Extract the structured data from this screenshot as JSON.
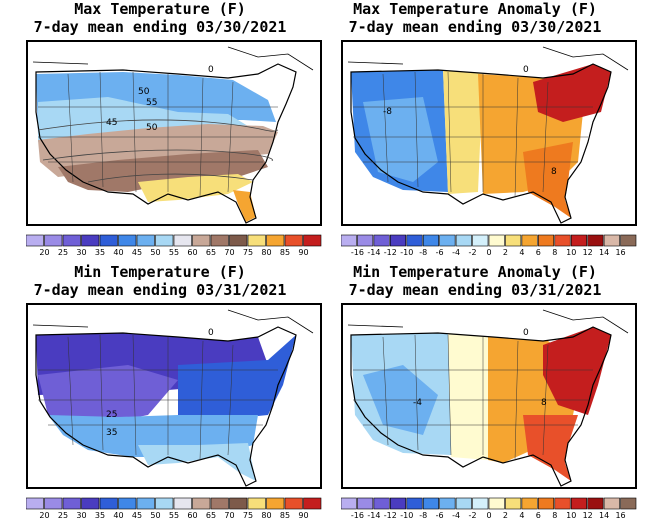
{
  "panels": [
    {
      "title": "Max Temperature (F)",
      "subtitle": "7-day mean ending 03/30/2021",
      "map_labels": [
        "0",
        "50",
        "55",
        "45",
        "50"
      ],
      "colorbar": {
        "ticks": [
          "20",
          "25",
          "30",
          "35",
          "40",
          "45",
          "50",
          "55",
          "60",
          "65",
          "70",
          "75",
          "80",
          "85",
          "90"
        ],
        "colors": [
          "#b9aef0",
          "#9a8be6",
          "#6f5fd6",
          "#4a3cc0",
          "#2f5ed8",
          "#3f87e8",
          "#6cb0f0",
          "#a8d8f4",
          "#e6e6ef",
          "#c8a898",
          "#a07868",
          "#7d5a4a",
          "#f7df7a",
          "#f5a531",
          "#e8502a",
          "#c41e1e"
        ]
      },
      "map_colors": {
        "north": "#6cb0f0",
        "mid": "#a8d8f4",
        "band": "#c8a898",
        "south": "#a07868",
        "gulf": "#f7df7a",
        "florida": "#f5a531"
      }
    },
    {
      "title": "Max Temperature Anomaly (F)",
      "subtitle": "7-day mean ending 03/30/2021",
      "map_labels": [
        "0",
        "-8",
        "8"
      ],
      "colorbar": {
        "ticks": [
          "-16",
          "-14",
          "-12",
          "-10",
          "-8",
          "-6",
          "-4",
          "-2",
          "0",
          "2",
          "4",
          "6",
          "8",
          "10",
          "12",
          "14",
          "16"
        ],
        "colors": [
          "#b9aef0",
          "#9a8be6",
          "#6f5fd6",
          "#4a3cc0",
          "#2f5ed8",
          "#3f87e8",
          "#6cb0f0",
          "#a8d8f4",
          "#d4f0fb",
          "#fffbd0",
          "#f7df7a",
          "#f5a531",
          "#ee7a1f",
          "#e8502a",
          "#c41e1e",
          "#9a1010",
          "#d9b8a8",
          "#8a6a58"
        ]
      },
      "map_colors": {
        "west": "#3f87e8",
        "west2": "#6cb0f0",
        "plains": "#f7df7a",
        "east": "#f5a531",
        "northeast": "#c41e1e",
        "southeast": "#ee7a1f"
      }
    },
    {
      "title": "Min Temperature (F)",
      "subtitle": "7-day mean ending 03/31/2021",
      "map_labels": [
        "0",
        "25",
        "35"
      ],
      "colorbar": {
        "ticks": [
          "20",
          "25",
          "30",
          "35",
          "40",
          "45",
          "50",
          "55",
          "60",
          "65",
          "70",
          "75",
          "80",
          "85",
          "90"
        ],
        "colors": [
          "#b9aef0",
          "#9a8be6",
          "#6f5fd6",
          "#4a3cc0",
          "#2f5ed8",
          "#3f87e8",
          "#6cb0f0",
          "#a8d8f4",
          "#e6e6ef",
          "#c8a898",
          "#a07868",
          "#7d5a4a",
          "#f7df7a",
          "#f5a531",
          "#e8502a",
          "#c41e1e"
        ]
      },
      "map_colors": {
        "north": "#4a3cc0",
        "mid": "#6f5fd6",
        "east": "#2f5ed8",
        "south": "#6cb0f0",
        "gulf": "#a8d8f4"
      }
    },
    {
      "title": "Min Temperature Anomaly (F)",
      "subtitle": "7-day mean ending 03/31/2021",
      "map_labels": [
        "0",
        "-4",
        "8"
      ],
      "colorbar": {
        "ticks": [
          "-16",
          "-14",
          "-12",
          "-10",
          "-8",
          "-6",
          "-4",
          "-2",
          "0",
          "2",
          "4",
          "6",
          "8",
          "10",
          "12",
          "14",
          "16"
        ],
        "colors": [
          "#b9aef0",
          "#9a8be6",
          "#6f5fd6",
          "#4a3cc0",
          "#2f5ed8",
          "#3f87e8",
          "#6cb0f0",
          "#a8d8f4",
          "#d4f0fb",
          "#fffbd0",
          "#f7df7a",
          "#f5a531",
          "#ee7a1f",
          "#e8502a",
          "#c41e1e",
          "#9a1010",
          "#d9b8a8",
          "#8a6a58"
        ]
      },
      "map_colors": {
        "west": "#a8d8f4",
        "west2": "#6cb0f0",
        "plains": "#fffbd0",
        "east": "#f5a531",
        "northeast": "#c41e1e",
        "southeast": "#e8502a"
      }
    }
  ]
}
